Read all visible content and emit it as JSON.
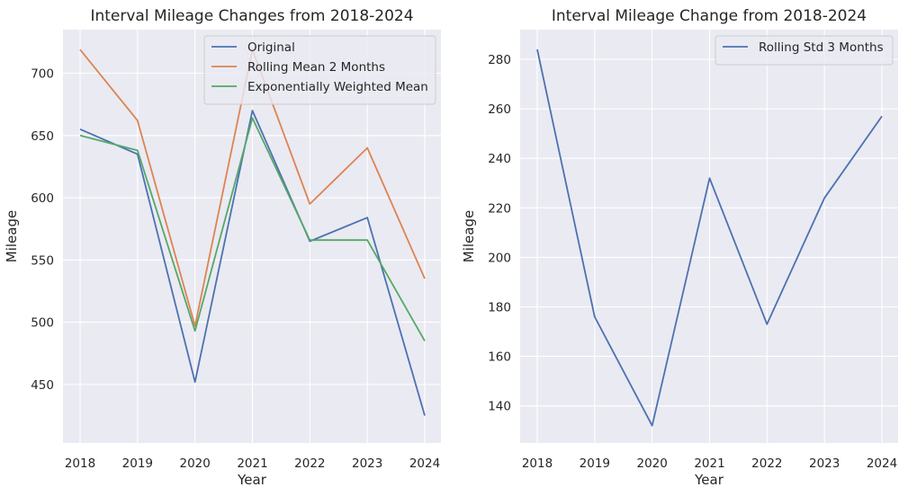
{
  "chart_data": [
    {
      "type": "line",
      "title": "Interval Mileage Changes from 2018-2024",
      "xlabel": "Year",
      "ylabel": "Mileage",
      "x": [
        "2018",
        "2019",
        "2020",
        "2021",
        "2022",
        "2023",
        "2024"
      ],
      "yticks": [
        "450",
        "500",
        "550",
        "600",
        "650",
        "700"
      ],
      "ylim": [
        403,
        735
      ],
      "grid": true,
      "legend_position": "top-right",
      "series": [
        {
          "name": "Original",
          "color": "#4c72b0",
          "values": [
            655,
            635,
            452,
            670,
            565,
            584,
            425
          ]
        },
        {
          "name": "Rolling Mean 2 Months",
          "color": "#dd8452",
          "values": [
            719,
            662,
            497,
            719,
            595,
            640,
            535
          ]
        },
        {
          "name": "Exponentially Weighted Mean",
          "color": "#55a868",
          "values": [
            650,
            638,
            493,
            664,
            566,
            566,
            485
          ]
        }
      ]
    },
    {
      "type": "line",
      "title": "Interval Mileage Change from 2018-2024",
      "xlabel": "Year",
      "ylabel": "Mileage",
      "x": [
        "2018",
        "2019",
        "2020",
        "2021",
        "2022",
        "2023",
        "2024"
      ],
      "yticks": [
        "140",
        "160",
        "180",
        "200",
        "220",
        "240",
        "260",
        "280"
      ],
      "ylim": [
        125,
        292
      ],
      "grid": true,
      "legend_position": "top-right",
      "series": [
        {
          "name": "Rolling Std 3 Months",
          "color": "#4c72b0",
          "values": [
            284,
            176,
            132,
            232,
            173,
            224,
            257
          ]
        }
      ]
    }
  ]
}
